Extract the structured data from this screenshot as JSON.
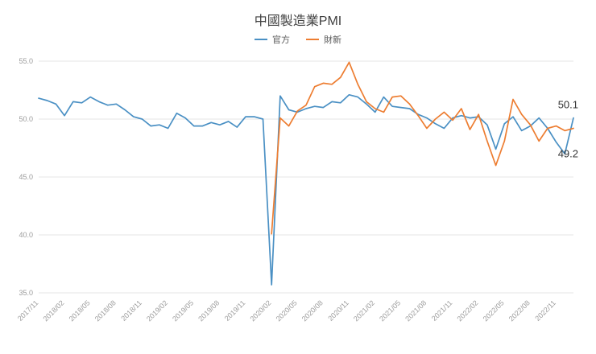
{
  "chart_data": {
    "type": "line",
    "title": "中國製造業PMI",
    "xlabel": "",
    "ylabel": "",
    "ylim": [
      35,
      55
    ],
    "y_ticks": [
      55,
      50,
      45,
      40,
      35
    ],
    "y_tick_labels": [
      "55.0",
      "50.0",
      "45.0",
      "40.0",
      "35.0"
    ],
    "grid": "horizontal-only",
    "legend_position": "top-center",
    "x": [
      "2017/11",
      "2017/12",
      "2018/01",
      "2018/02",
      "2018/03",
      "2018/04",
      "2018/05",
      "2018/06",
      "2018/07",
      "2018/08",
      "2018/09",
      "2018/10",
      "2018/11",
      "2018/12",
      "2019/01",
      "2019/02",
      "2019/03",
      "2019/04",
      "2019/05",
      "2019/06",
      "2019/07",
      "2019/08",
      "2019/09",
      "2019/10",
      "2019/11",
      "2019/12",
      "2020/01",
      "2020/02",
      "2020/03",
      "2020/04",
      "2020/05",
      "2020/06",
      "2020/07",
      "2020/08",
      "2020/09",
      "2020/10",
      "2020/11",
      "2020/12",
      "2021/01",
      "2021/02",
      "2021/03",
      "2021/04",
      "2021/05",
      "2021/06",
      "2021/07",
      "2021/08",
      "2021/09",
      "2021/10",
      "2021/11",
      "2021/12",
      "2022/01",
      "2022/02",
      "2022/03",
      "2022/04",
      "2022/05",
      "2022/06",
      "2022/07",
      "2022/08",
      "2022/09",
      "2022/10",
      "2022/11",
      "2022/12",
      "2023/01"
    ],
    "x_tick_labels": [
      "2017/11",
      "2018/02",
      "2018/05",
      "2018/08",
      "2018/11",
      "2019/02",
      "2019/05",
      "2019/08",
      "2019/11",
      "2020/02",
      "2020/05",
      "2020/08",
      "2020/11",
      "2021/02",
      "2021/05",
      "2021/08",
      "2021/11",
      "2022/02",
      "2022/05",
      "2022/08",
      "2022/11"
    ],
    "series": [
      {
        "name": "官方",
        "color": "#4a90c4",
        "values": [
          51.8,
          51.6,
          51.3,
          50.3,
          51.5,
          51.4,
          51.9,
          51.5,
          51.2,
          51.3,
          50.8,
          50.2,
          50.0,
          49.4,
          49.5,
          49.2,
          50.5,
          50.1,
          49.4,
          49.4,
          49.7,
          49.5,
          49.8,
          49.3,
          50.2,
          50.2,
          50.0,
          35.7,
          52.0,
          50.8,
          50.6,
          50.9,
          51.1,
          51.0,
          51.5,
          51.4,
          52.1,
          51.9,
          51.3,
          50.6,
          51.9,
          51.1,
          51.0,
          50.9,
          50.4,
          50.1,
          49.6,
          49.2,
          50.1,
          50.3,
          50.1,
          50.2,
          49.5,
          47.4,
          49.6,
          50.2,
          49.0,
          49.4,
          50.1,
          49.2,
          48.0,
          47.0,
          50.1
        ]
      },
      {
        "name": "財新",
        "color": "#ed7d31",
        "values": [
          null,
          null,
          null,
          null,
          null,
          null,
          null,
          null,
          null,
          null,
          null,
          null,
          null,
          null,
          null,
          null,
          null,
          null,
          null,
          null,
          null,
          null,
          null,
          null,
          null,
          null,
          null,
          40.1,
          50.1,
          49.4,
          50.7,
          51.2,
          52.8,
          53.1,
          53.0,
          53.6,
          54.9,
          53.0,
          51.5,
          50.9,
          50.6,
          51.9,
          52.0,
          51.3,
          50.3,
          49.2,
          50.0,
          50.6,
          49.9,
          50.9,
          49.1,
          50.4,
          48.1,
          46.0,
          48.1,
          51.7,
          50.4,
          49.5,
          48.1,
          49.2,
          49.4,
          49.0,
          49.2
        ]
      }
    ],
    "annotations": [
      {
        "text": "50.1",
        "series_index": 0,
        "placement": "above-last-point",
        "color": "#333333"
      },
      {
        "text": "49.2",
        "series_index": 1,
        "placement": "below-last-point",
        "color": "#333333"
      }
    ]
  }
}
